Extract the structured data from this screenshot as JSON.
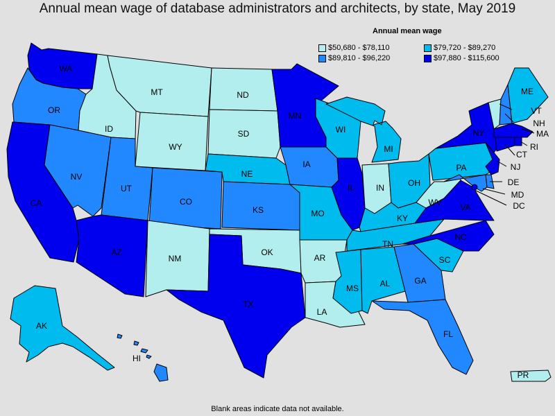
{
  "title": "Annual mean wage of database administrators and architects, by state, May 2019",
  "legend": {
    "title": "Annual mean wage",
    "items": [
      {
        "label": "$50,680 - $78,110",
        "color": "#b3eeee"
      },
      {
        "label": "$79,720 - $89,270",
        "color": "#00bbee"
      },
      {
        "label": "$89,810 - $96,220",
        "color": "#2288ff"
      },
      {
        "label": "$97,880 - $115,600",
        "color": "#0000ee"
      }
    ]
  },
  "footnote": "Blank areas indicate data not available.",
  "states": [
    {
      "abbr": "WA",
      "tier": 3
    },
    {
      "abbr": "OR",
      "tier": 2
    },
    {
      "abbr": "CA",
      "tier": 3
    },
    {
      "abbr": "ID",
      "tier": 0
    },
    {
      "abbr": "NV",
      "tier": 2
    },
    {
      "abbr": "MT",
      "tier": 0
    },
    {
      "abbr": "WY",
      "tier": 0
    },
    {
      "abbr": "UT",
      "tier": 2
    },
    {
      "abbr": "AZ",
      "tier": 3
    },
    {
      "abbr": "CO",
      "tier": 2
    },
    {
      "abbr": "NM",
      "tier": 0
    },
    {
      "abbr": "ND",
      "tier": 0
    },
    {
      "abbr": "SD",
      "tier": 0
    },
    {
      "abbr": "NE",
      "tier": 1
    },
    {
      "abbr": "KS",
      "tier": 2
    },
    {
      "abbr": "OK",
      "tier": 0
    },
    {
      "abbr": "TX",
      "tier": 3
    },
    {
      "abbr": "MN",
      "tier": 3
    },
    {
      "abbr": "IA",
      "tier": 2
    },
    {
      "abbr": "MO",
      "tier": 1
    },
    {
      "abbr": "AR",
      "tier": 0
    },
    {
      "abbr": "LA",
      "tier": 0
    },
    {
      "abbr": "WI",
      "tier": 1
    },
    {
      "abbr": "IL",
      "tier": 3
    },
    {
      "abbr": "MI",
      "tier": 1
    },
    {
      "abbr": "IN",
      "tier": 0
    },
    {
      "abbr": "OH",
      "tier": 1
    },
    {
      "abbr": "KY",
      "tier": 1
    },
    {
      "abbr": "TN",
      "tier": 1
    },
    {
      "abbr": "MS",
      "tier": 1
    },
    {
      "abbr": "AL",
      "tier": 1
    },
    {
      "abbr": "GA",
      "tier": 2
    },
    {
      "abbr": "FL",
      "tier": 2
    },
    {
      "abbr": "SC",
      "tier": 1
    },
    {
      "abbr": "NC",
      "tier": 3
    },
    {
      "abbr": "VA",
      "tier": 3
    },
    {
      "abbr": "WV",
      "tier": 0
    },
    {
      "abbr": "PA",
      "tier": 1
    },
    {
      "abbr": "NY",
      "tier": 3
    },
    {
      "abbr": "VT",
      "tier": 0
    },
    {
      "abbr": "NH",
      "tier": 2
    },
    {
      "abbr": "ME",
      "tier": 1
    },
    {
      "abbr": "MA",
      "tier": 3
    },
    {
      "abbr": "RI",
      "tier": 3
    },
    {
      "abbr": "CT",
      "tier": 3
    },
    {
      "abbr": "NJ",
      "tier": 3
    },
    {
      "abbr": "DE",
      "tier": 2
    },
    {
      "abbr": "MD",
      "tier": 2
    },
    {
      "abbr": "DC",
      "tier": 3
    },
    {
      "abbr": "AK",
      "tier": 1
    },
    {
      "abbr": "HI",
      "tier": 2
    },
    {
      "abbr": "PR",
      "tier": 0
    }
  ]
}
